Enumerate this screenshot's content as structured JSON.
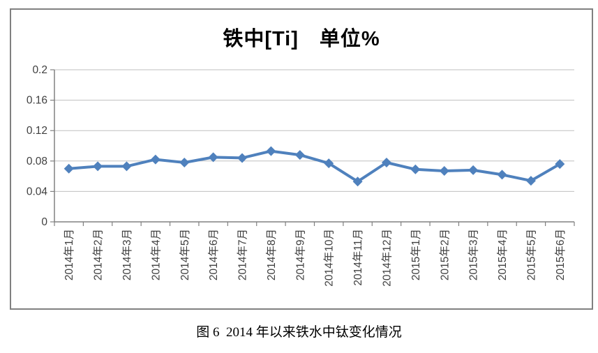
{
  "figure": {
    "caption": "图 6  2014 年以来铁水中钛变化情况"
  },
  "chart_data": {
    "type": "line",
    "title": "铁中[Ti]　单位%",
    "categories": [
      "2014年1月",
      "2014年2月",
      "2014年3月",
      "2014年4月",
      "2014年5月",
      "2014年6月",
      "2014年7月",
      "2014年8月",
      "2014年9月",
      "2014年10月",
      "2014年11月",
      "2014年12月",
      "2015年1月",
      "2015年2月",
      "2015年3月",
      "2015年4月",
      "2015年5月",
      "2015年6月"
    ],
    "values": [
      0.07,
      0.073,
      0.073,
      0.082,
      0.078,
      0.085,
      0.084,
      0.093,
      0.088,
      0.077,
      0.053,
      0.078,
      0.069,
      0.067,
      0.068,
      0.062,
      0.054,
      0.076
    ],
    "xlabel": "",
    "ylabel": "",
    "ylim": [
      0,
      0.2
    ],
    "yticks": [
      0,
      0.04,
      0.08,
      0.12,
      0.16,
      0.2
    ],
    "ytick_labels": [
      "0",
      "0.04",
      "0.08",
      "0.12",
      "0.16",
      "0.2"
    ],
    "grid": true,
    "legend": false,
    "marker": "diamond",
    "colors": {
      "series": "#4F81BD",
      "gridline": "#BFBFBF",
      "axis": "#808080",
      "frame_border": "#808080",
      "tick_label": "#3F3F3F",
      "title": "#000000"
    }
  }
}
